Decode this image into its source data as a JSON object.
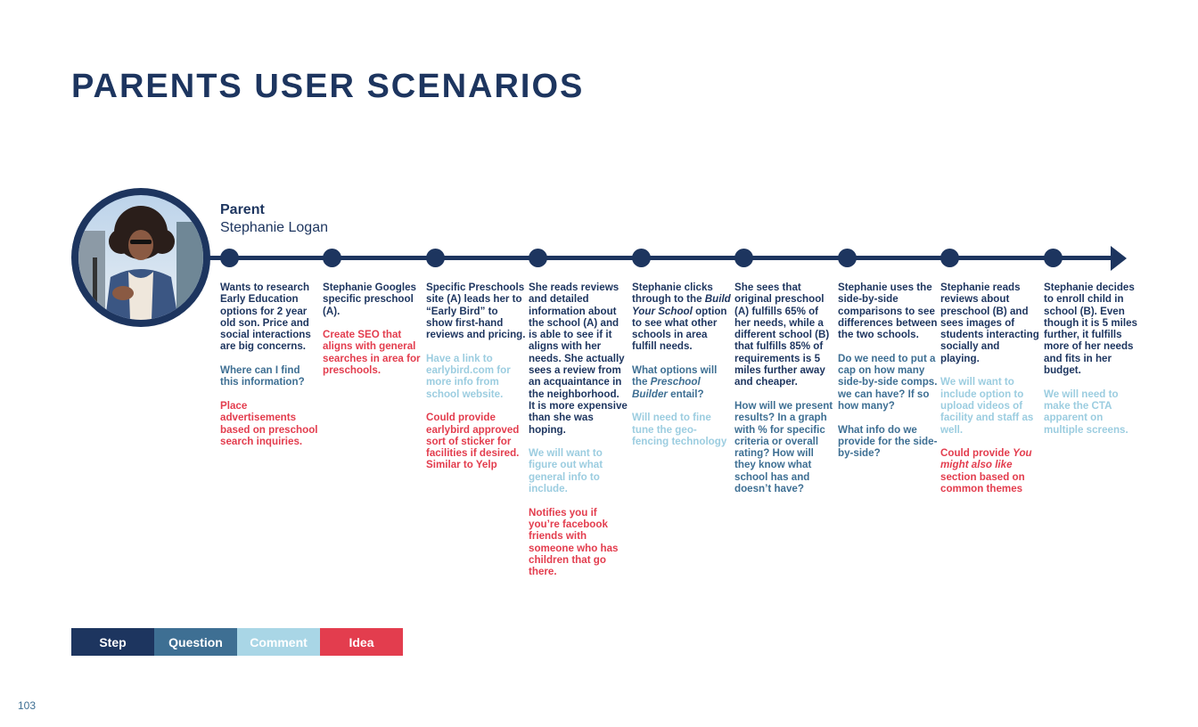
{
  "title": "PARENTS USER SCENARIOS",
  "persona": {
    "role": "Parent",
    "name": "Stephanie Logan"
  },
  "colors": {
    "step": "#1d355f",
    "question": "#3e6f93",
    "comment": "#9ccde0",
    "idea": "#e33d4e"
  },
  "columns": [
    {
      "paragraphs": [
        {
          "type": "step",
          "text": "Wants to research Early Education options for 2 year old son. Price and social interactions are big concerns."
        },
        {
          "type": "question",
          "text": "Where can I find this information?"
        },
        {
          "type": "idea",
          "text": "Place advertisements based on preschool search inquiries."
        }
      ]
    },
    {
      "paragraphs": [
        {
          "type": "step",
          "text": "Stephanie Googles specific preschool (A)."
        },
        {
          "type": "idea",
          "text": "Create SEO that aligns with general searches in area for preschools."
        }
      ]
    },
    {
      "paragraphs": [
        {
          "type": "step",
          "text": "Specific Preschools site (A) leads her to “Early Bird” to show first-hand reviews and pricing."
        },
        {
          "type": "comment",
          "text": "Have a link to earlybird.com for more info from school website."
        },
        {
          "type": "idea",
          "text": "Could provide earlybird approved sort of sticker for facilities if desired. Similar to Yelp"
        }
      ]
    },
    {
      "paragraphs": [
        {
          "type": "step",
          "text": "She reads reviews and detailed information about the school (A) and is able to see if it aligns with her needs. She actually sees a review from an acquaintance in the neighborhood. It is more expensive than she was hoping."
        },
        {
          "type": "comment",
          "text": "We will want to figure out what general info to include."
        },
        {
          "type": "idea",
          "text": "Notifies you if you’re facebook friends with someone who has children that go there."
        }
      ]
    },
    {
      "paragraphs": [
        {
          "type": "step",
          "before": "Stephanie clicks through to the ",
          "em": "Build Your School",
          "after": " option to see what other schools in area fulfill needs."
        },
        {
          "type": "question",
          "before": "What options will the ",
          "em": "Preschool Builder",
          "after": " entail?"
        },
        {
          "type": "comment",
          "text": "Will need to fine tune the geo-fencing technology"
        }
      ]
    },
    {
      "paragraphs": [
        {
          "type": "step",
          "text": "She sees that original preschool (A)  fulfills 65% of her needs, while a different school (B) that fulfills 85% of requirements is 5 miles further away and cheaper."
        },
        {
          "type": "question",
          "text": "How will we present results? In a graph with % for specific criteria or overall rating? How will they know what school has and doesn’t have?"
        }
      ]
    },
    {
      "paragraphs": [
        {
          "type": "step",
          "text": "Stephanie uses the side-by-side comparisons to see differences between the two schools."
        },
        {
          "type": "question",
          "text": "Do we need to put a cap on how many side-by-side comps. we can have? If so how many?"
        },
        {
          "type": "question",
          "text": "What info do we provide for the side-by-side?"
        }
      ]
    },
    {
      "paragraphs": [
        {
          "type": "step",
          "text": "Stephanie reads reviews about preschool (B) and sees images of students interacting socially and playing."
        },
        {
          "type": "comment",
          "text": "We will want to include option to upload videos of facility and staff as well."
        },
        {
          "type": "idea",
          "before": "Could provide ",
          "em": "You might also like",
          "after": " section based on common themes"
        }
      ]
    },
    {
      "paragraphs": [
        {
          "type": "step",
          "text": "Stephanie decides to enroll child in school (B). Even though it is 5 miles further, it fulfills more of her needs and fits in her budget."
        },
        {
          "type": "comment",
          "text": "We will need to make the CTA apparent on multiple screens."
        }
      ]
    }
  ],
  "legend": [
    {
      "label": "Step",
      "color": "#1d355f",
      "text_color": "#ffffff"
    },
    {
      "label": "Question",
      "color": "#3e6f93",
      "text_color": "#ffffff"
    },
    {
      "label": "Comment",
      "color": "#a9d6e6",
      "text_color": "#ffffff"
    },
    {
      "label": "Idea",
      "color": "#e33d4e",
      "text_color": "#ffffff"
    }
  ],
  "page_number": "103"
}
